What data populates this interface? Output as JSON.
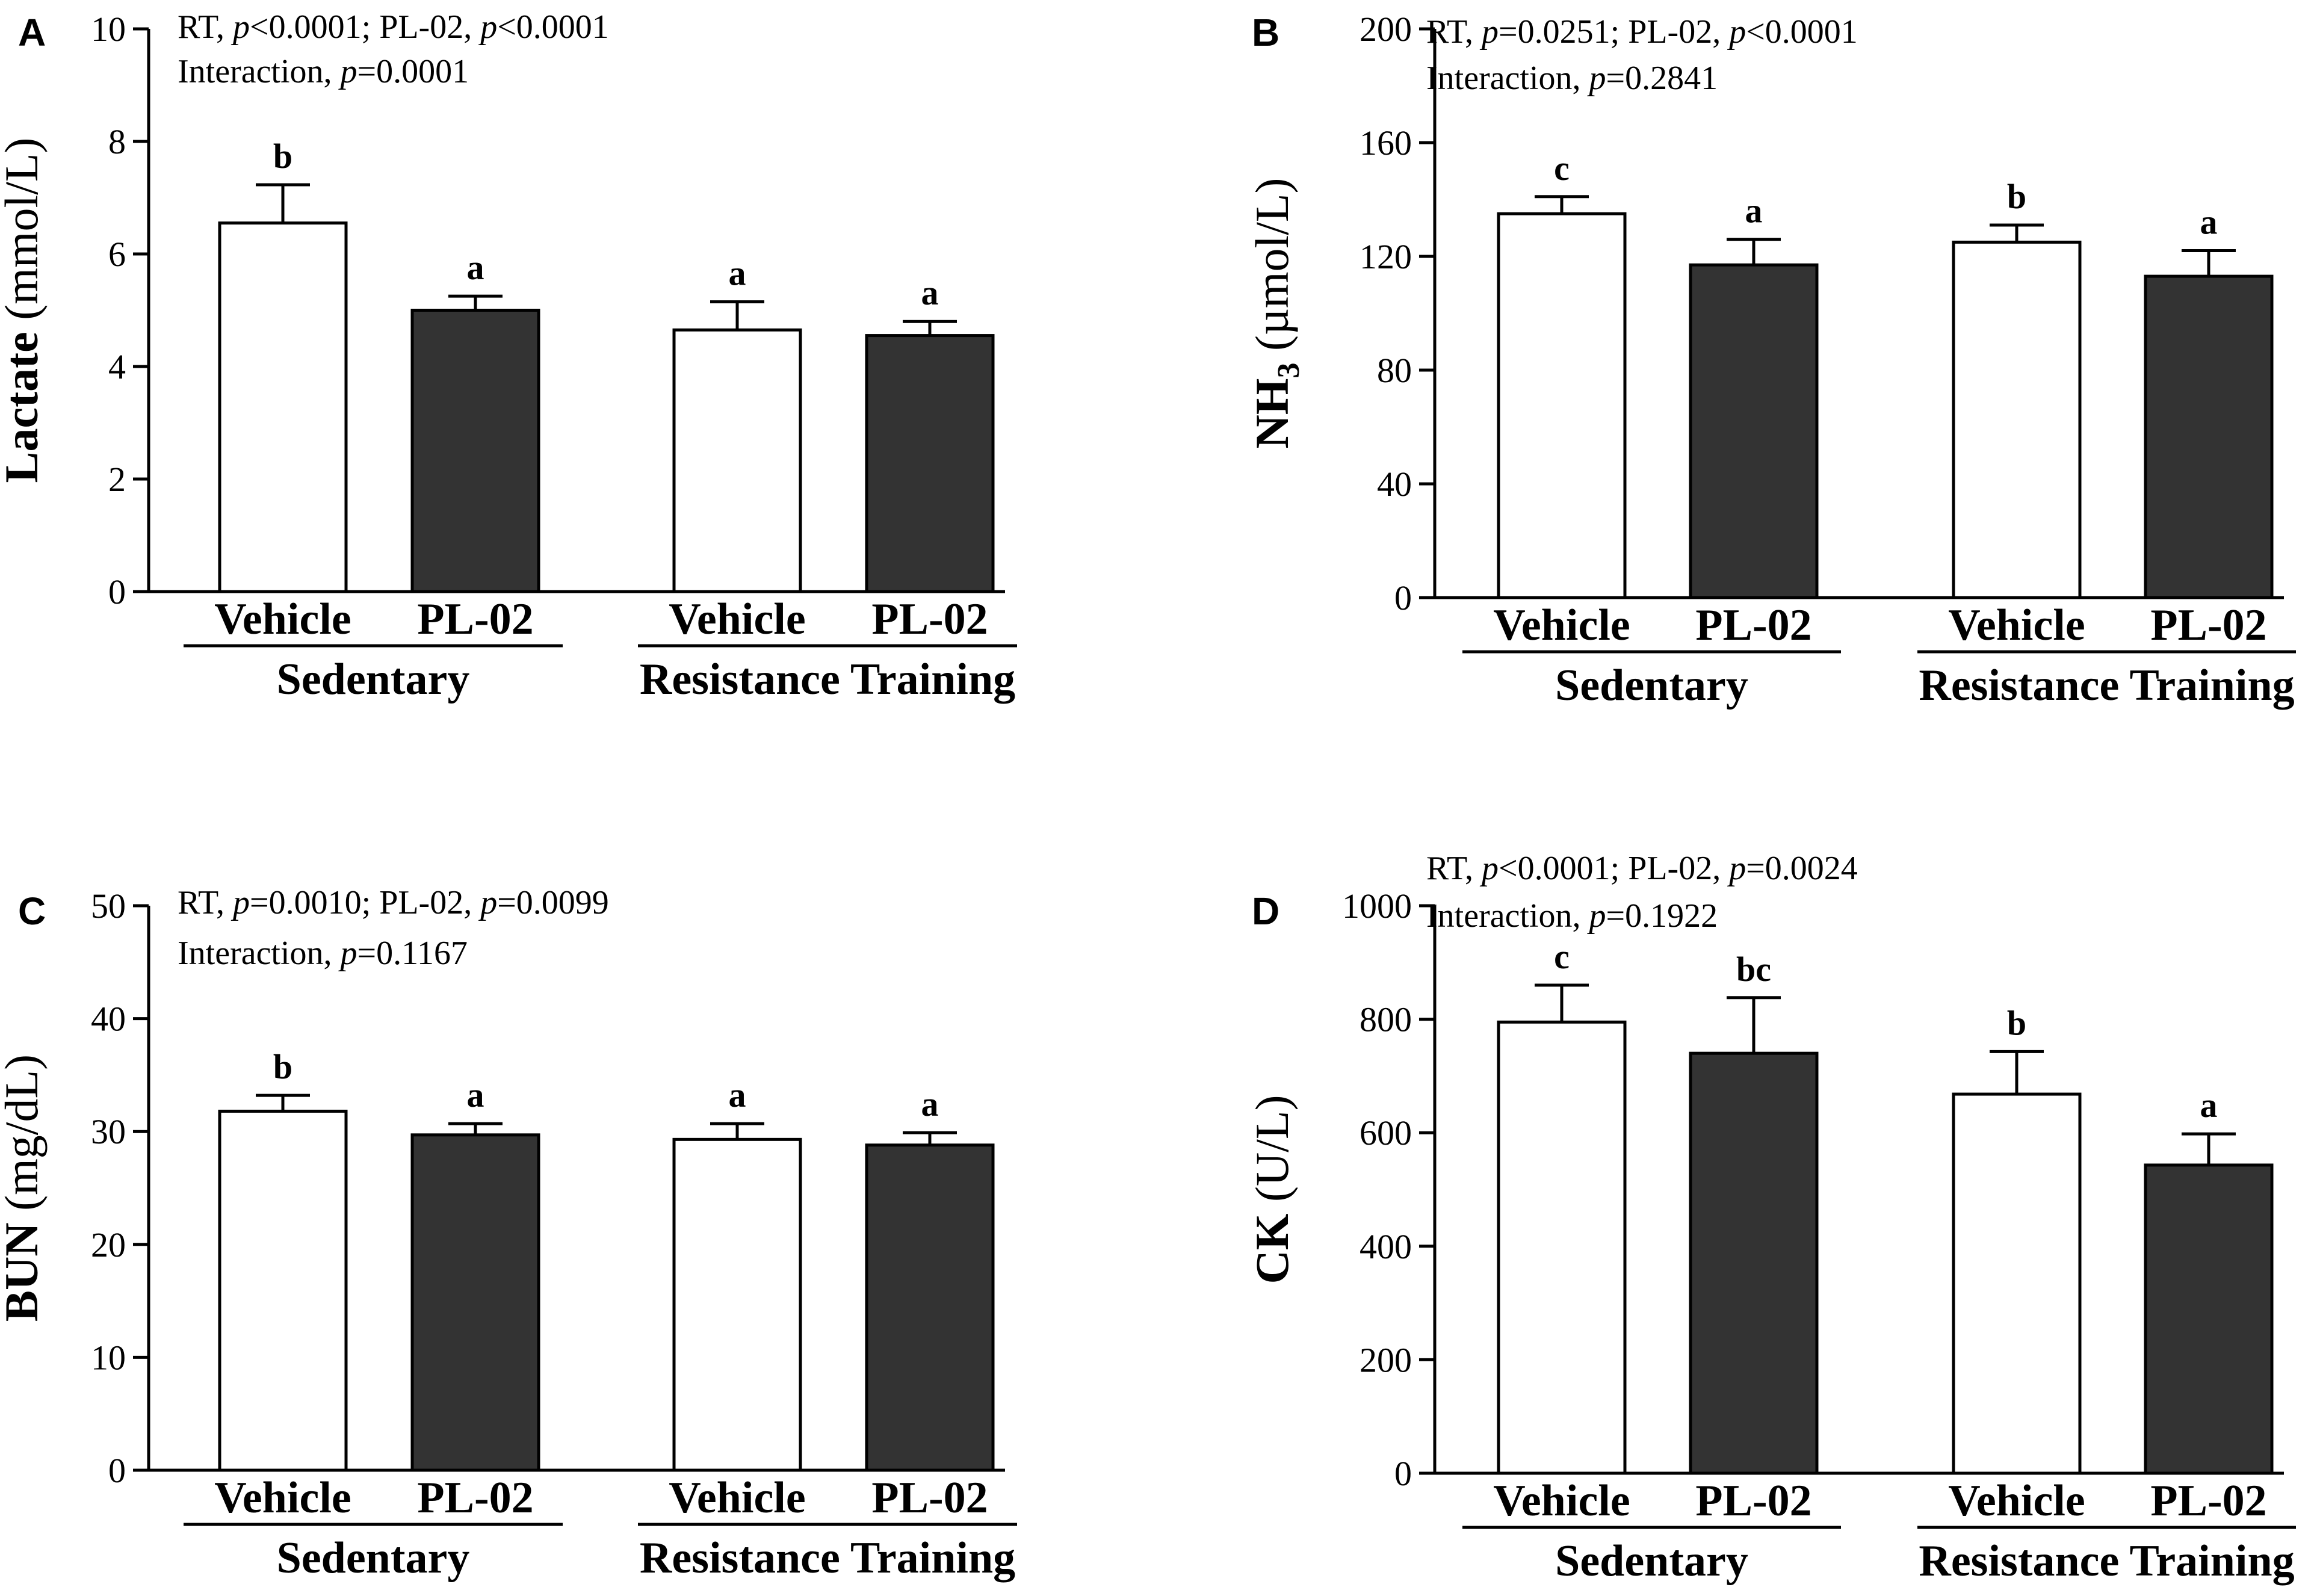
{
  "colors": {
    "vehicle": "#ffffff",
    "pl02": "#333333",
    "axis": "#000000"
  },
  "chart_data": [
    {
      "panel": "A",
      "type": "bar",
      "ylabel_main": "Lactate",
      "ylabel_sub": "",
      "ylabel_unit": " (mmol/L)",
      "ylim": [
        0,
        10
      ],
      "yticks": [
        0,
        2,
        4,
        6,
        8,
        10
      ],
      "stat_line1": [
        [
          "RT, ",
          false
        ],
        [
          "p",
          true
        ],
        [
          "<0.0001; PL-02, ",
          false
        ],
        [
          "p",
          true
        ],
        [
          "<0.0001",
          false
        ]
      ],
      "stat_line2": [
        [
          "Interaction, ",
          false
        ],
        [
          "p",
          true
        ],
        [
          "=0.0001",
          false
        ]
      ],
      "groups": [
        "Sedentary",
        "Resistance Training"
      ],
      "categories": [
        "Vehicle",
        "PL-02",
        "Vehicle",
        "PL-02"
      ],
      "values": [
        6.55,
        5.0,
        4.65,
        4.55
      ],
      "errors": [
        0.68,
        0.25,
        0.5,
        0.25
      ],
      "letters": [
        "b",
        "a",
        "a",
        "a"
      ]
    },
    {
      "panel": "B",
      "type": "bar",
      "ylabel_main": "NH",
      "ylabel_sub": "3",
      "ylabel_unit": " (µmol/L)",
      "ylim": [
        0,
        200
      ],
      "yticks": [
        0,
        40,
        80,
        120,
        160,
        200
      ],
      "stat_line1": [
        [
          "RT, ",
          false
        ],
        [
          "p",
          true
        ],
        [
          "=0.0251; PL-02, ",
          false
        ],
        [
          "p",
          true
        ],
        [
          "<0.0001",
          false
        ]
      ],
      "stat_line2": [
        [
          "Interaction, ",
          false
        ],
        [
          "p",
          true
        ],
        [
          "=0.2841",
          false
        ]
      ],
      "groups": [
        "Sedentary",
        "Resistance Training"
      ],
      "categories": [
        "Vehicle",
        "PL-02",
        "Vehicle",
        "PL-02"
      ],
      "values": [
        135,
        117,
        125,
        113
      ],
      "errors": [
        6,
        9,
        6,
        9
      ],
      "letters": [
        "c",
        "a",
        "b",
        "a"
      ]
    },
    {
      "panel": "C",
      "type": "bar",
      "ylabel_main": "BUN",
      "ylabel_sub": "",
      "ylabel_unit": " (mg/dL)",
      "ylim": [
        0,
        50
      ],
      "yticks": [
        0,
        10,
        20,
        30,
        40,
        50
      ],
      "stat_line1": [
        [
          "RT, ",
          false
        ],
        [
          "p",
          true
        ],
        [
          "=0.0010; PL-02, ",
          false
        ],
        [
          "p",
          true
        ],
        [
          "=0.0099",
          false
        ]
      ],
      "stat_line2": [
        [
          "Interaction, ",
          false
        ],
        [
          "p",
          true
        ],
        [
          "=0.1167",
          false
        ]
      ],
      "groups": [
        "Sedentary",
        "Resistance Training"
      ],
      "categories": [
        "Vehicle",
        "PL-02",
        "Vehicle",
        "PL-02"
      ],
      "values": [
        31.8,
        29.7,
        29.3,
        28.8
      ],
      "errors": [
        1.4,
        1.0,
        1.4,
        1.1
      ],
      "letters": [
        "b",
        "a",
        "a",
        "a"
      ]
    },
    {
      "panel": "D",
      "type": "bar",
      "ylabel_main": "CK",
      "ylabel_sub": "",
      "ylabel_unit": " (U/L)",
      "ylim": [
        0,
        1000
      ],
      "yticks": [
        0,
        200,
        400,
        600,
        800,
        1000
      ],
      "stat_line1": [
        [
          "RT, ",
          false
        ],
        [
          "p",
          true
        ],
        [
          "<0.0001; PL-02, ",
          false
        ],
        [
          "p",
          true
        ],
        [
          "=0.0024",
          false
        ]
      ],
      "stat_line2": [
        [
          "Interaction, ",
          false
        ],
        [
          "p",
          true
        ],
        [
          "=0.1922",
          false
        ]
      ],
      "groups": [
        "Sedentary",
        "Resistance Training"
      ],
      "categories": [
        "Vehicle",
        "PL-02",
        "Vehicle",
        "PL-02"
      ],
      "values": [
        795,
        740,
        668,
        543
      ],
      "errors": [
        65,
        98,
        75,
        55
      ],
      "letters": [
        "c",
        "bc",
        "b",
        "a"
      ]
    }
  ]
}
